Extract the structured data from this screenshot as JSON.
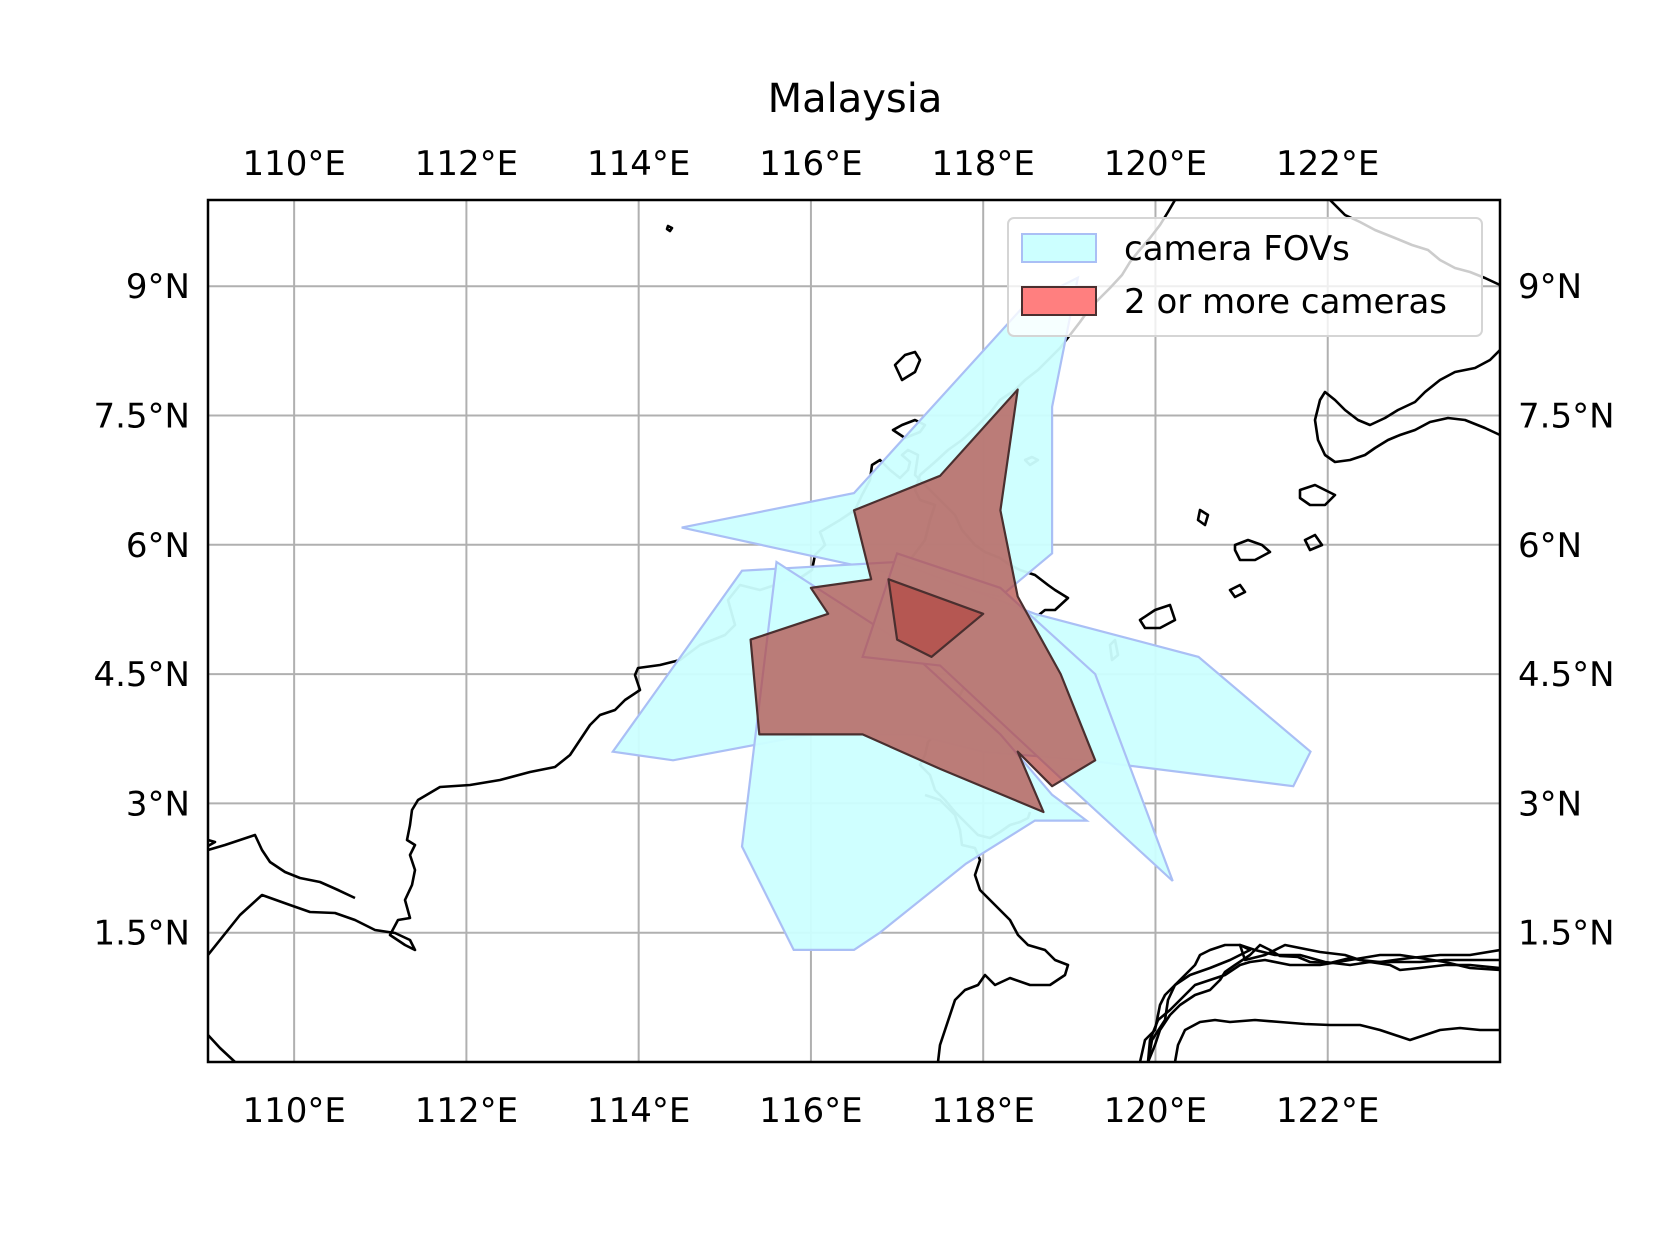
{
  "title": "Malaysia",
  "chart_data": {
    "type": "map",
    "title": "Malaysia",
    "projection": "PlateCarree",
    "lon_range": [
      109.0,
      124.0
    ],
    "lat_range": [
      0.0,
      10.0
    ],
    "grid": true,
    "lon_ticks": [
      {
        "value": 110,
        "label": "110°E"
      },
      {
        "value": 112,
        "label": "112°E"
      },
      {
        "value": 114,
        "label": "114°E"
      },
      {
        "value": 116,
        "label": "116°E"
      },
      {
        "value": 118,
        "label": "118°E"
      },
      {
        "value": 120,
        "label": "120°E"
      },
      {
        "value": 122,
        "label": "122°E"
      }
    ],
    "lat_ticks": [
      {
        "value": 1.5,
        "label": "1.5°N"
      },
      {
        "value": 3.0,
        "label": "3°N"
      },
      {
        "value": 4.5,
        "label": "4.5°N"
      },
      {
        "value": 6.0,
        "label": "6°N"
      },
      {
        "value": 7.5,
        "label": "7.5°N"
      },
      {
        "value": 9.0,
        "label": "9°N"
      }
    ],
    "legend": {
      "placement": "upper right",
      "entries": [
        {
          "key": "fov",
          "label": "camera FOVs"
        },
        {
          "key": "overlap",
          "label": "2 or more cameras"
        }
      ]
    },
    "colors": {
      "fov_fill": "#ccffff",
      "fov_edge": "#aabff5",
      "overlap_fill": "#c77a73",
      "overlap_edge": "#4a2f2f",
      "coast": "#000000",
      "grid": "#b0b0b0"
    },
    "series": [
      {
        "key": "fov",
        "regions": [
          [
            [
              114.5,
              6.2
            ],
            [
              116.5,
              6.6
            ],
            [
              118.5,
              8.8
            ],
            [
              119.1,
              9.1
            ],
            [
              118.8,
              7.6
            ],
            [
              118.8,
              5.9
            ],
            [
              118.2,
              5.4
            ],
            [
              116.8,
              5.7
            ],
            [
              114.5,
              6.2
            ]
          ],
          [
            [
              115.2,
              5.7
            ],
            [
              117.0,
              5.8
            ],
            [
              118.6,
              5.2
            ],
            [
              120.5,
              4.7
            ],
            [
              121.8,
              3.6
            ],
            [
              121.6,
              3.2
            ],
            [
              119.2,
              3.5
            ],
            [
              118.0,
              3.6
            ],
            [
              117.2,
              3.8
            ],
            [
              116.0,
              3.8
            ],
            [
              114.4,
              3.5
            ],
            [
              113.7,
              3.6
            ],
            [
              115.2,
              5.7
            ]
          ],
          [
            [
              117.0,
              4.9
            ],
            [
              118.2,
              3.8
            ],
            [
              118.8,
              3.1
            ],
            [
              119.2,
              2.8
            ],
            [
              118.6,
              2.8
            ],
            [
              117.8,
              2.3
            ],
            [
              116.8,
              1.5
            ],
            [
              116.5,
              1.3
            ],
            [
              115.8,
              1.3
            ],
            [
              115.2,
              2.5
            ],
            [
              115.6,
              5.8
            ],
            [
              117.0,
              4.9
            ]
          ],
          [
            [
              117.0,
              5.9
            ],
            [
              118.2,
              5.5
            ],
            [
              119.3,
              4.5
            ],
            [
              120.2,
              2.1
            ],
            [
              119.0,
              3.2
            ],
            [
              117.5,
              4.6
            ],
            [
              116.6,
              4.7
            ],
            [
              117.0,
              5.9
            ]
          ]
        ]
      },
      {
        "key": "overlap",
        "regions": [
          [
            [
              116.5,
              6.4
            ],
            [
              117.5,
              6.8
            ],
            [
              118.4,
              7.8
            ],
            [
              118.2,
              6.4
            ],
            [
              118.4,
              5.4
            ],
            [
              118.9,
              4.5
            ],
            [
              119.3,
              3.5
            ],
            [
              118.8,
              3.2
            ],
            [
              118.4,
              3.6
            ],
            [
              118.7,
              2.9
            ],
            [
              117.5,
              3.4
            ],
            [
              116.6,
              3.8
            ],
            [
              115.4,
              3.8
            ],
            [
              115.3,
              4.9
            ],
            [
              116.2,
              5.2
            ],
            [
              116.0,
              5.5
            ],
            [
              116.7,
              5.6
            ],
            [
              116.5,
              6.4
            ]
          ],
          [
            [
              116.9,
              5.6
            ],
            [
              117.0,
              4.9
            ],
            [
              117.4,
              4.7
            ],
            [
              118.0,
              5.2
            ],
            [
              116.9,
              5.6
            ]
          ]
        ]
      }
    ]
  }
}
